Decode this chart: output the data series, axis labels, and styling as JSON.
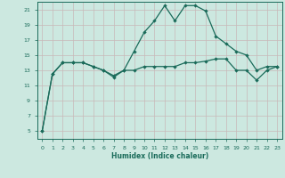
{
  "xlabel": "Humidex (Indice chaleur)",
  "bg_color": "#cce8e0",
  "grid_color": "#c8b8b8",
  "line_color": "#1a6b5a",
  "x": [
    0,
    1,
    2,
    3,
    4,
    5,
    6,
    7,
    8,
    9,
    10,
    11,
    12,
    13,
    14,
    15,
    16,
    17,
    18,
    19,
    20,
    21,
    22,
    23
  ],
  "line1": [
    5,
    12.5,
    14,
    14,
    14,
    13.5,
    13,
    12.3,
    13,
    15.5,
    18,
    19.5,
    21.5,
    19.5,
    21.5,
    21.5,
    20.8,
    17.5,
    16.5,
    15.5,
    15,
    13,
    13.5,
    13.5
  ],
  "line2": [
    5,
    12.5,
    14,
    14,
    14,
    13.5,
    13,
    12.1,
    13,
    13,
    13.5,
    13.5,
    13.5,
    13.5,
    14,
    14,
    14.2,
    14.5,
    14.5,
    13,
    13,
    11.7,
    13,
    13.5
  ],
  "ylim": [
    4,
    22
  ],
  "yticks": [
    5,
    7,
    9,
    11,
    13,
    15,
    17,
    19,
    21
  ],
  "xlim": [
    -0.5,
    23.5
  ]
}
